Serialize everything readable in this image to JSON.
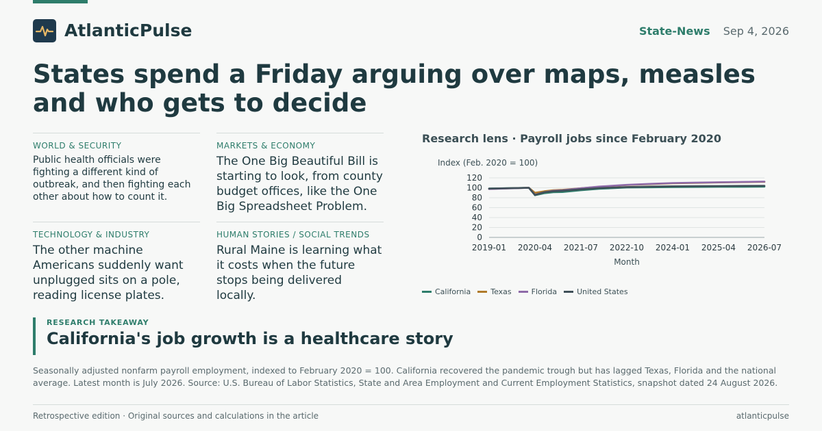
{
  "brand": {
    "name": "AtlanticPulse",
    "icon": "pulse-icon",
    "color": "#2e7d6b"
  },
  "header": {
    "section": "State-News",
    "date": "Sep 4, 2026"
  },
  "headline": "States spend a Friday arguing over maps, measles and who gets to decide",
  "stories": [
    {
      "category": "WORLD & SECURITY",
      "text": "Public health officials were fighting a different kind of outbreak, and then fighting each other about how to count it."
    },
    {
      "category": "MARKETS & ECONOMY",
      "text": "The One Big Beautiful Bill is starting to look, from county budget offices, like the One Big Spreadsheet Problem."
    },
    {
      "category": "TECHNOLOGY & INDUSTRY",
      "text": "The other machine Americans suddenly want unplugged sits on a pole, reading license plates."
    },
    {
      "category": "HUMAN STORIES / SOCIAL TRENDS",
      "text": "Rural Maine is learning what it costs when the future stops being delivered locally."
    }
  ],
  "chart_title": "Research lens · Payroll jobs since February 2020",
  "chart_data": {
    "type": "line",
    "title": "Research lens · Payroll jobs since February 2020",
    "ylabel": "Index (Feb. 2020 = 100)",
    "xlabel": "Month",
    "ylim": [
      0,
      120
    ],
    "yticks": [
      0,
      20,
      40,
      60,
      80,
      100,
      120
    ],
    "xticks": [
      "2019-01",
      "2020-04",
      "2021-07",
      "2022-10",
      "2024-01",
      "2025-04",
      "2026-07"
    ],
    "grid": true,
    "legend": "bottom",
    "x": [
      "2019-01",
      "2020-02",
      "2020-04",
      "2020-07",
      "2020-10",
      "2021-01",
      "2021-07",
      "2022-01",
      "2022-10",
      "2023-06",
      "2024-01",
      "2024-09",
      "2025-04",
      "2025-12",
      "2026-07"
    ],
    "series": [
      {
        "name": "California",
        "color": "#2e7d6b",
        "values": [
          98.5,
          100,
          85,
          89,
          91,
          91.5,
          95,
          98,
          100.5,
          101,
          101.5,
          101.8,
          102,
          102.2,
          102.5
        ]
      },
      {
        "name": "Texas",
        "color": "#b07a2a",
        "values": [
          97.8,
          100,
          90,
          93,
          95,
          96,
          99,
          102,
          105.5,
          107.5,
          109,
          110,
          110.8,
          111.5,
          112
        ]
      },
      {
        "name": "Florida",
        "color": "#8e6aa8",
        "values": [
          97.5,
          100,
          86,
          91,
          94,
          95,
          99,
          102.5,
          106,
          108,
          109.5,
          110.5,
          111.2,
          111.8,
          112.5
        ]
      },
      {
        "name": "United States",
        "color": "#3f4f58",
        "values": [
          98.3,
          100,
          85.5,
          91,
          93,
          94,
          97,
          99.5,
          101.5,
          102.5,
          103,
          103.3,
          103.6,
          103.9,
          104.2
        ]
      }
    ]
  },
  "takeaway": {
    "kicker": "RESEARCH TAKEAWAY",
    "title": "California's job growth is a healthcare story"
  },
  "caption": "Seasonally adjusted nonfarm payroll employment, indexed to February 2020 = 100. California recovered the pandemic trough but has lagged Texas, Florida and the national average. Latest month is July 2026. Source: U.S. Bureau of Labor Statistics, State and Area Employment and Current Employment Statistics, snapshot dated 24 August 2026.",
  "footer": {
    "left": "Retrospective edition · Original sources and calculations in the article",
    "right": "atlanticpulse"
  }
}
